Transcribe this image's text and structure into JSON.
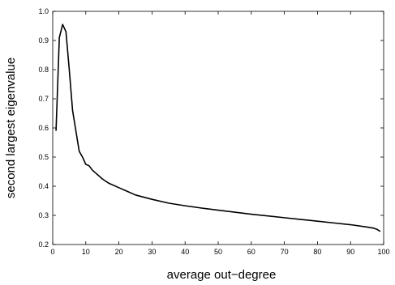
{
  "chart_data": {
    "type": "line",
    "title": "",
    "xlabel": "average out−degree",
    "ylabel": "second largest eigenvalue",
    "xlim": [
      0,
      100
    ],
    "ylim": [
      0.2,
      1.0
    ],
    "xticks": [
      0,
      10,
      20,
      30,
      40,
      50,
      60,
      70,
      80,
      90,
      100
    ],
    "yticks": [
      0.2,
      0.3,
      0.4,
      0.5,
      0.6,
      0.7,
      0.8,
      0.9,
      1.0
    ],
    "xtick_labels": [
      "0",
      "10",
      "20",
      "30",
      "40",
      "50",
      "60",
      "70",
      "80",
      "90",
      "100"
    ],
    "ytick_labels": [
      "0.2",
      "0.3",
      "0.4",
      "0.5",
      "0.6",
      "0.7",
      "0.8",
      "0.9",
      "1.0"
    ],
    "grid": false,
    "series": [
      {
        "x": [
          1,
          2,
          3,
          4,
          5,
          6,
          7,
          8,
          9,
          10,
          11,
          12,
          13,
          14,
          15,
          17,
          20,
          22,
          25,
          30,
          35,
          40,
          45,
          50,
          55,
          60,
          65,
          70,
          75,
          80,
          85,
          90,
          95,
          97,
          98,
          99
        ],
        "y": [
          0.59,
          0.91,
          0.955,
          0.93,
          0.8,
          0.66,
          0.59,
          0.52,
          0.5,
          0.475,
          0.47,
          0.455,
          0.445,
          0.435,
          0.425,
          0.41,
          0.395,
          0.385,
          0.37,
          0.355,
          0.342,
          0.333,
          0.325,
          0.318,
          0.311,
          0.304,
          0.298,
          0.292,
          0.286,
          0.28,
          0.274,
          0.268,
          0.26,
          0.256,
          0.252,
          0.245
        ],
        "color": "#000000"
      }
    ]
  }
}
